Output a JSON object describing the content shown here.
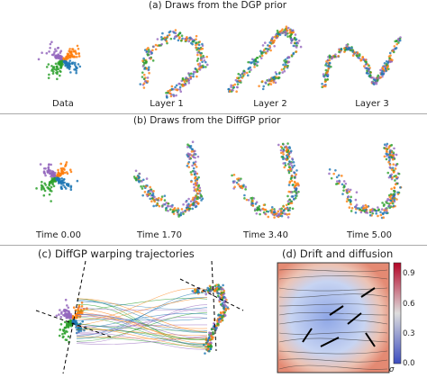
{
  "section_a": {
    "title": "(a) Draws from the DGP prior",
    "panels": [
      "Data",
      "Layer 1",
      "Layer 2",
      "Layer 3"
    ]
  },
  "section_b": {
    "title": "(b) Draws from the DiffGP prior",
    "panels": [
      "Time 0.00",
      "Time 1.70",
      "Time 3.40",
      "Time 5.00"
    ]
  },
  "section_c": {
    "title": "(c) DiffGP warping trajectories"
  },
  "section_d": {
    "title": "(d) Drift and diffusion",
    "colorbar_label": "σ",
    "colorbar_ticks": [
      "0.9",
      "0.6",
      "0.3",
      "0.0"
    ]
  },
  "colors": {
    "purple": "#9467bd",
    "orange": "#ff7f0e",
    "green": "#2ca02c",
    "blue": "#1f77b4",
    "red": "#d62728"
  }
}
